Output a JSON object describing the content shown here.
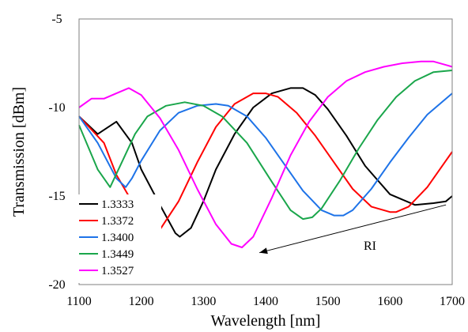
{
  "chart_data": {
    "type": "line",
    "title": "",
    "xlabel": "Wavelength [nm]",
    "ylabel": "Transmission [dBm]",
    "xlim": [
      1100,
      1700
    ],
    "ylim": [
      -20,
      -5
    ],
    "xticks": [
      "1100",
      "1200",
      "1300",
      "1400",
      "1500",
      "1600",
      "1700"
    ],
    "yticks": [
      "-5",
      "-10",
      "-15",
      "-20"
    ],
    "grid": false,
    "legend_position": "bottom-left",
    "annotation": {
      "text": "RI",
      "arrow_from": [
        1690,
        -15.5
      ],
      "arrow_to": [
        1390,
        -18.2
      ]
    },
    "series": [
      {
        "name": "1.3333",
        "color": "#000000",
        "x": [
          1100,
          1130,
          1160,
          1185,
          1200,
          1230,
          1255,
          1262,
          1280,
          1300,
          1320,
          1350,
          1380,
          1410,
          1440,
          1460,
          1480,
          1500,
          1530,
          1560,
          1600,
          1640,
          1670,
          1690,
          1700
        ],
        "y": [
          -10.5,
          -11.5,
          -10.8,
          -12.0,
          -13.5,
          -15.5,
          -17.1,
          -17.3,
          -16.8,
          -15.3,
          -13.5,
          -11.5,
          -10.0,
          -9.2,
          -8.9,
          -8.9,
          -9.3,
          -10.1,
          -11.6,
          -13.3,
          -14.9,
          -15.5,
          -15.4,
          -15.3,
          -15.0
        ]
      },
      {
        "name": "1.3372",
        "color": "#ff0000",
        "x": [
          1100,
          1140,
          1160,
          1180,
          1200,
          1215,
          1230,
          1260,
          1290,
          1320,
          1350,
          1380,
          1400,
          1420,
          1450,
          1480,
          1510,
          1540,
          1570,
          1600,
          1610,
          1630,
          1660,
          1690,
          1700
        ],
        "y": [
          -10.5,
          -12.0,
          -13.8,
          -15.0,
          -16.6,
          -17.2,
          -16.9,
          -15.3,
          -13.1,
          -11.1,
          -9.8,
          -9.2,
          -9.2,
          -9.4,
          -10.3,
          -11.6,
          -13.1,
          -14.6,
          -15.6,
          -15.9,
          -15.9,
          -15.6,
          -14.5,
          -13.0,
          -12.5
        ]
      },
      {
        "name": "1.3400",
        "color": "#1e73e8",
        "x": [
          1100,
          1130,
          1160,
          1175,
          1185,
          1200,
          1230,
          1260,
          1290,
          1320,
          1340,
          1370,
          1400,
          1430,
          1460,
          1490,
          1510,
          1525,
          1540,
          1570,
          1600,
          1630,
          1660,
          1700
        ],
        "y": [
          -10.5,
          -12.0,
          -14.0,
          -14.5,
          -14.0,
          -13.0,
          -11.3,
          -10.3,
          -9.9,
          -9.8,
          -9.9,
          -10.5,
          -11.7,
          -13.2,
          -14.7,
          -15.8,
          -16.1,
          -16.1,
          -15.8,
          -14.6,
          -13.1,
          -11.7,
          -10.4,
          -9.2
        ]
      },
      {
        "name": "1.3449",
        "color": "#1aa64b",
        "x": [
          1100,
          1130,
          1150,
          1170,
          1190,
          1210,
          1240,
          1270,
          1300,
          1330,
          1370,
          1410,
          1440,
          1460,
          1475,
          1490,
          1520,
          1550,
          1580,
          1610,
          1640,
          1670,
          1700
        ],
        "y": [
          -11.0,
          -13.5,
          -14.5,
          -13.0,
          -11.5,
          -10.5,
          -9.9,
          -9.7,
          -9.9,
          -10.5,
          -12.0,
          -14.2,
          -15.8,
          -16.3,
          -16.2,
          -15.7,
          -14.1,
          -12.3,
          -10.7,
          -9.4,
          -8.5,
          -8.0,
          -7.9
        ]
      },
      {
        "name": "1.3527",
        "color": "#ff00ff",
        "x": [
          1100,
          1120,
          1140,
          1160,
          1180,
          1200,
          1230,
          1260,
          1290,
          1320,
          1345,
          1362,
          1380,
          1410,
          1440,
          1470,
          1500,
          1530,
          1560,
          1590,
          1620,
          1650,
          1670,
          1690,
          1700
        ],
        "y": [
          -10.0,
          -9.5,
          -9.5,
          -9.2,
          -8.9,
          -9.3,
          -10.6,
          -12.4,
          -14.6,
          -16.6,
          -17.7,
          -17.9,
          -17.3,
          -15.1,
          -12.7,
          -10.8,
          -9.4,
          -8.5,
          -8.0,
          -7.7,
          -7.5,
          -7.4,
          -7.4,
          -7.6,
          -7.7
        ]
      }
    ]
  }
}
